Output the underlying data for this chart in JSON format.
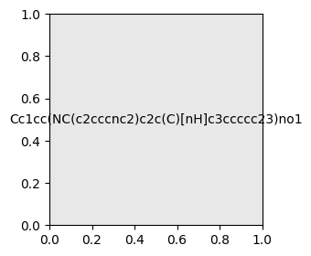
{
  "smiles": "Cc1cc(NC(c2cccnc2)c2c(C)[nH]c3ccccc23)no1",
  "image_size": 300,
  "background_color": "#e8e8e8"
}
